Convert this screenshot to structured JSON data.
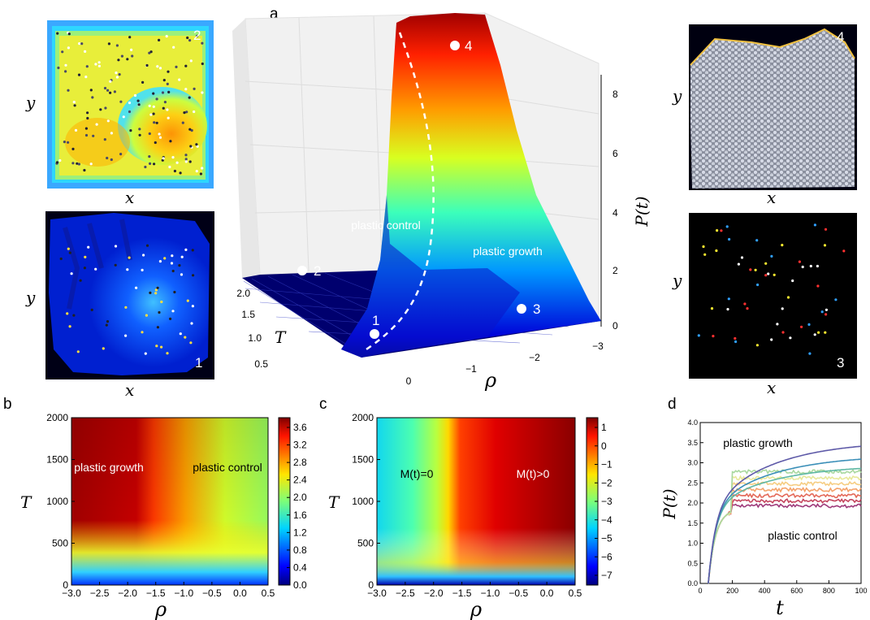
{
  "chart_data": [
    {
      "panel": "a",
      "type": "surface",
      "xlabel": "ρ",
      "ylabel": "T",
      "zlabel": "P(t)",
      "x_ticks": [
        "0",
        "−1",
        "−2",
        "−3"
      ],
      "y_ticks": [
        "0.5",
        "1.0",
        "1.5",
        "2.0"
      ],
      "z_ticks": [
        "0",
        "2",
        "4",
        "6",
        "8"
      ],
      "zlim": [
        0,
        8
      ],
      "regions": [
        "plastic control",
        "plastic growth"
      ],
      "points": [
        "1",
        "2",
        "3",
        "4"
      ],
      "dashed_boundary": true
    },
    {
      "panel": "b",
      "type": "heatmap",
      "xlabel": "ρ",
      "ylabel": "T",
      "x_ticks": [
        "−3.0",
        "−2.5",
        "−2.0",
        "−1.5",
        "−1.0",
        "−0.5",
        "0.0",
        "0.5"
      ],
      "y_ticks": [
        "0",
        "500",
        "1000",
        "1500",
        "2000"
      ],
      "xlim": [
        -3.0,
        0.5
      ],
      "ylim": [
        0,
        2000
      ],
      "colorbar_ticks": [
        "0.0",
        "0.4",
        "0.8",
        "1.2",
        "1.6",
        "2.0",
        "2.4",
        "2.8",
        "3.2",
        "3.6"
      ],
      "regions": [
        "plastic growth",
        "plastic control"
      ]
    },
    {
      "panel": "c",
      "type": "heatmap",
      "xlabel": "ρ",
      "ylabel": "T",
      "x_ticks": [
        "−3.0",
        "−2.5",
        "−2.0",
        "−1.5",
        "−1.0",
        "−0.5",
        "0.0",
        "0.5"
      ],
      "y_ticks": [
        "0",
        "500",
        "1000",
        "1500",
        "2000"
      ],
      "xlim": [
        -3.0,
        0.5
      ],
      "ylim": [
        0,
        2000
      ],
      "colorbar_ticks": [
        "1",
        "0",
        "−1",
        "−2",
        "−3",
        "−4",
        "−5",
        "−6",
        "−7"
      ],
      "regions": [
        "M(t)=0",
        "M(t)>0"
      ]
    },
    {
      "panel": "d",
      "type": "line",
      "xlabel": "t",
      "ylabel": "P(t)",
      "x_ticks": [
        "0",
        "200",
        "400",
        "600",
        "800",
        "100"
      ],
      "y_ticks": [
        "0.0",
        "0.5",
        "1.0",
        "1.5",
        "2.0",
        "2.5",
        "3.0",
        "3.5",
        "4.0"
      ],
      "xlim": [
        0,
        1000
      ],
      "ylim": [
        0,
        4.0
      ],
      "annotations": [
        "plastic growth",
        "plastic control"
      ],
      "series": [
        {
          "color": "#9e3a7a",
          "plateau": 1.93
        },
        {
          "color": "#c4455e",
          "plateau": 2.05
        },
        {
          "color": "#e46a5a",
          "plateau": 2.18
        },
        {
          "color": "#f4a26a",
          "plateau": 2.33
        },
        {
          "color": "#f6cd82",
          "plateau": 2.48
        },
        {
          "color": "#e8e89a",
          "plateau": 2.62
        },
        {
          "color": "#a9d89f",
          "plateau": 2.78
        },
        {
          "color": "#5fb8a4",
          "plateau": 2.95
        },
        {
          "color": "#3b8fb8",
          "plateau": 3.2
        },
        {
          "color": "#5e5aa8",
          "plateau": 3.55
        }
      ]
    }
  ],
  "insets": {
    "axis_x": "x",
    "axis_y": "y",
    "labels": [
      "2",
      "1",
      "4",
      "3"
    ]
  },
  "panel_letters": [
    "a",
    "b",
    "c",
    "d"
  ]
}
